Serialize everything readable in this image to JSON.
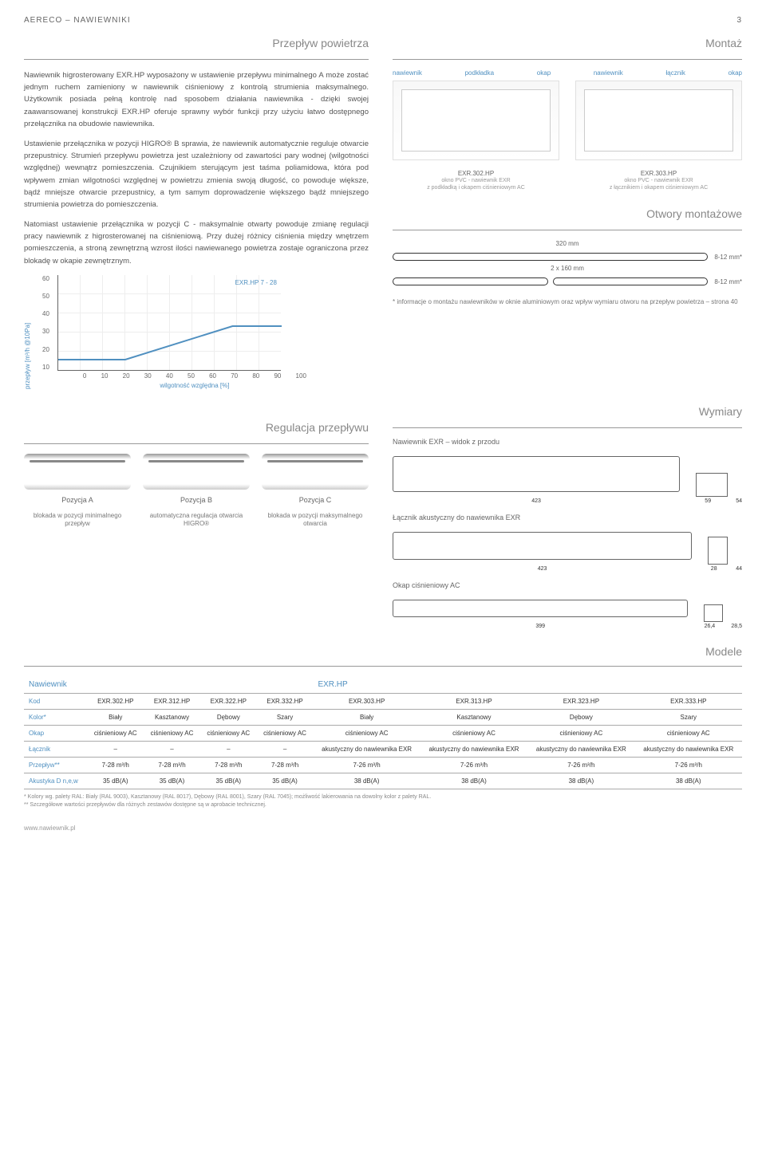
{
  "page": {
    "header": "AERECO – NAWIEWNIKI",
    "page_num": "3"
  },
  "airflow": {
    "title": "Przepływ powietrza",
    "p1": "Nawiewnik higrosterowany EXR.HP wyposażony w ustawienie przepływu minimalnego A może zostać jednym ruchem zamieniony w nawiewnik ciśnieniowy z kontrolą strumienia maksymalnego. Użytkownik posiada pełną kontrolę nad sposobem działania nawiewnika - dzięki swojej zaawansowanej konstrukcji EXR.HP oferuje sprawny wybór funkcji przy użyciu łatwo dostępnego przełącznika na obudowie nawiewnika.",
    "p2": "Ustawienie przełącznika w pozycji HIGRO® B sprawia, że nawiewnik automatycznie reguluje otwarcie przepustnicy. Strumień przepływu powietrza jest uzależniony od zawartości pary wodnej (wilgotności względnej) wewnątrz pomieszczenia. Czujnikiem sterującym jest taśma poliamidowa, która pod wpływem zmian wilgotności względnej w powietrzu zmienia swoją długość, co powoduje większe, bądź mniejsze otwarcie przepustnicy, a tym samym doprowadzenie większego bądź mniejszego strumienia powietrza do pomieszczenia.",
    "p3": "Natomiast ustawienie przełącznika w pozycji C - maksymalnie otwarty powoduje zmianę regulacji pracy nawiewnik z higrosterowanej na ciśnieniową. Przy dużej różnicy ciśnienia między wnętrzem pomieszczenia, a stroną zewnętrzną wzrost ilości nawiewanego powietrza zostaje ograniczona przez blokadę w okapie zewnętrznym."
  },
  "montage": {
    "title": "Montaż",
    "labels_l": [
      "nawiewnik",
      "podkładka",
      "okap"
    ],
    "labels_r": [
      "nawiewnik",
      "łącznik",
      "okap"
    ],
    "cap_l_code": "EXR.302.HP",
    "cap_r_code": "EXR.303.HP",
    "cap_l": "okno PVC - nawiewnik EXR\nz podkładką i okapem ciśnieniowym AC",
    "cap_r": "okno PVC - nawiewnik EXR\nz łącznikiem i okapem ciśnieniowym AC"
  },
  "holes": {
    "title": "Otwory montażowe",
    "slot1_w": "320 mm",
    "slot1_h": "8-12 mm*",
    "slot2_w": "2 x 160 mm",
    "slot2_h": "8-12 mm*",
    "note": "* informacje o montażu nawiewników w oknie aluminiowym oraz wpływ wymiaru otworu na przepływ powietrza – strona 40"
  },
  "chart": {
    "ylabel": "przepływ [m³/h @10Pa]",
    "yticks": [
      "60",
      "50",
      "40",
      "30",
      "20",
      "10"
    ],
    "xlabel": "wilgotność względna [%]",
    "xticks": [
      "0",
      "10",
      "20",
      "30",
      "40",
      "50",
      "60",
      "70",
      "80",
      "90",
      "100"
    ],
    "legend": "EXR.HP 7 - 28",
    "series": {
      "x": [
        0,
        30,
        78,
        100
      ],
      "y": [
        7,
        7,
        28,
        28
      ],
      "color": "#5090c0",
      "ymax": 60
    }
  },
  "wymiary": {
    "title": "Wymiary",
    "sub1": "Nawiewnik EXR – widok z przodu",
    "dim1_w": "423",
    "dim1_h": "54",
    "dim1_s": "59",
    "sub2": "Łącznik akustyczny do nawiewnika EXR",
    "dim2_w": "423",
    "dim2_h": "44",
    "dim2_s": "28",
    "sub3": "Okap ciśnieniowy AC",
    "dim3_w": "399",
    "dim3_h": "28,5",
    "dim3_s": "26,4"
  },
  "regulation": {
    "title": "Regulacja przepływu",
    "pos": [
      "Pozycja A",
      "Pozycja B",
      "Pozycja C"
    ],
    "desc": [
      "blokada w pozycji minimalnego przepływ",
      "automatyczna regulacja otwarcia HIGRO®",
      "blokada w pozycji maksymalnego otwarcia"
    ]
  },
  "models": {
    "title": "Modele",
    "header_l": "Nawiewnik",
    "header_r": "EXR.HP",
    "rows": [
      {
        "k": "Kod",
        "v": [
          "EXR.302.HP",
          "EXR.312.HP",
          "EXR.322.HP",
          "EXR.332.HP",
          "EXR.303.HP",
          "EXR.313.HP",
          "EXR.323.HP",
          "EXR.333.HP"
        ]
      },
      {
        "k": "Kolor*",
        "v": [
          "Biały",
          "Kasztanowy",
          "Dębowy",
          "Szary",
          "Biały",
          "Kasztanowy",
          "Dębowy",
          "Szary"
        ]
      },
      {
        "k": "Okap",
        "v": [
          "ciśnieniowy AC",
          "ciśnieniowy AC",
          "ciśnieniowy AC",
          "ciśnieniowy AC",
          "ciśnieniowy AC",
          "ciśnieniowy AC",
          "ciśnieniowy AC",
          "ciśnieniowy AC"
        ]
      },
      {
        "k": "Łącznik",
        "v": [
          "–",
          "–",
          "–",
          "–",
          "akustyczny do nawiewnika EXR",
          "akustyczny do nawiewnika EXR",
          "akustyczny do nawiewnika EXR",
          "akustyczny do nawiewnika EXR"
        ]
      },
      {
        "k": "Przepływ**",
        "v": [
          "7-28 m³/h",
          "7-28 m³/h",
          "7-28 m³/h",
          "7-28 m³/h",
          "7-26 m³/h",
          "7-26 m³/h",
          "7-26 m³/h",
          "7-26 m³/h"
        ]
      },
      {
        "k": "Akustyka D n,e,w",
        "v": [
          "35 dB(A)",
          "35 dB(A)",
          "35 dB(A)",
          "35 dB(A)",
          "38 dB(A)",
          "38 dB(A)",
          "38 dB(A)",
          "38 dB(A)"
        ]
      }
    ],
    "foot1": "* Kolory wg. palety RAL: Biały (RAL 9003), Kasztanowy (RAL 8017), Dębowy (RAL 8001), Szary (RAL 7045); możliwość lakierowania na dowolny kolor z palety RAL.",
    "foot2": "** Szczegółowe wartości przepływów dla różnych zestawów dostępne są w aprobacie technicznej."
  },
  "footer": "www.nawiewnik.pl"
}
